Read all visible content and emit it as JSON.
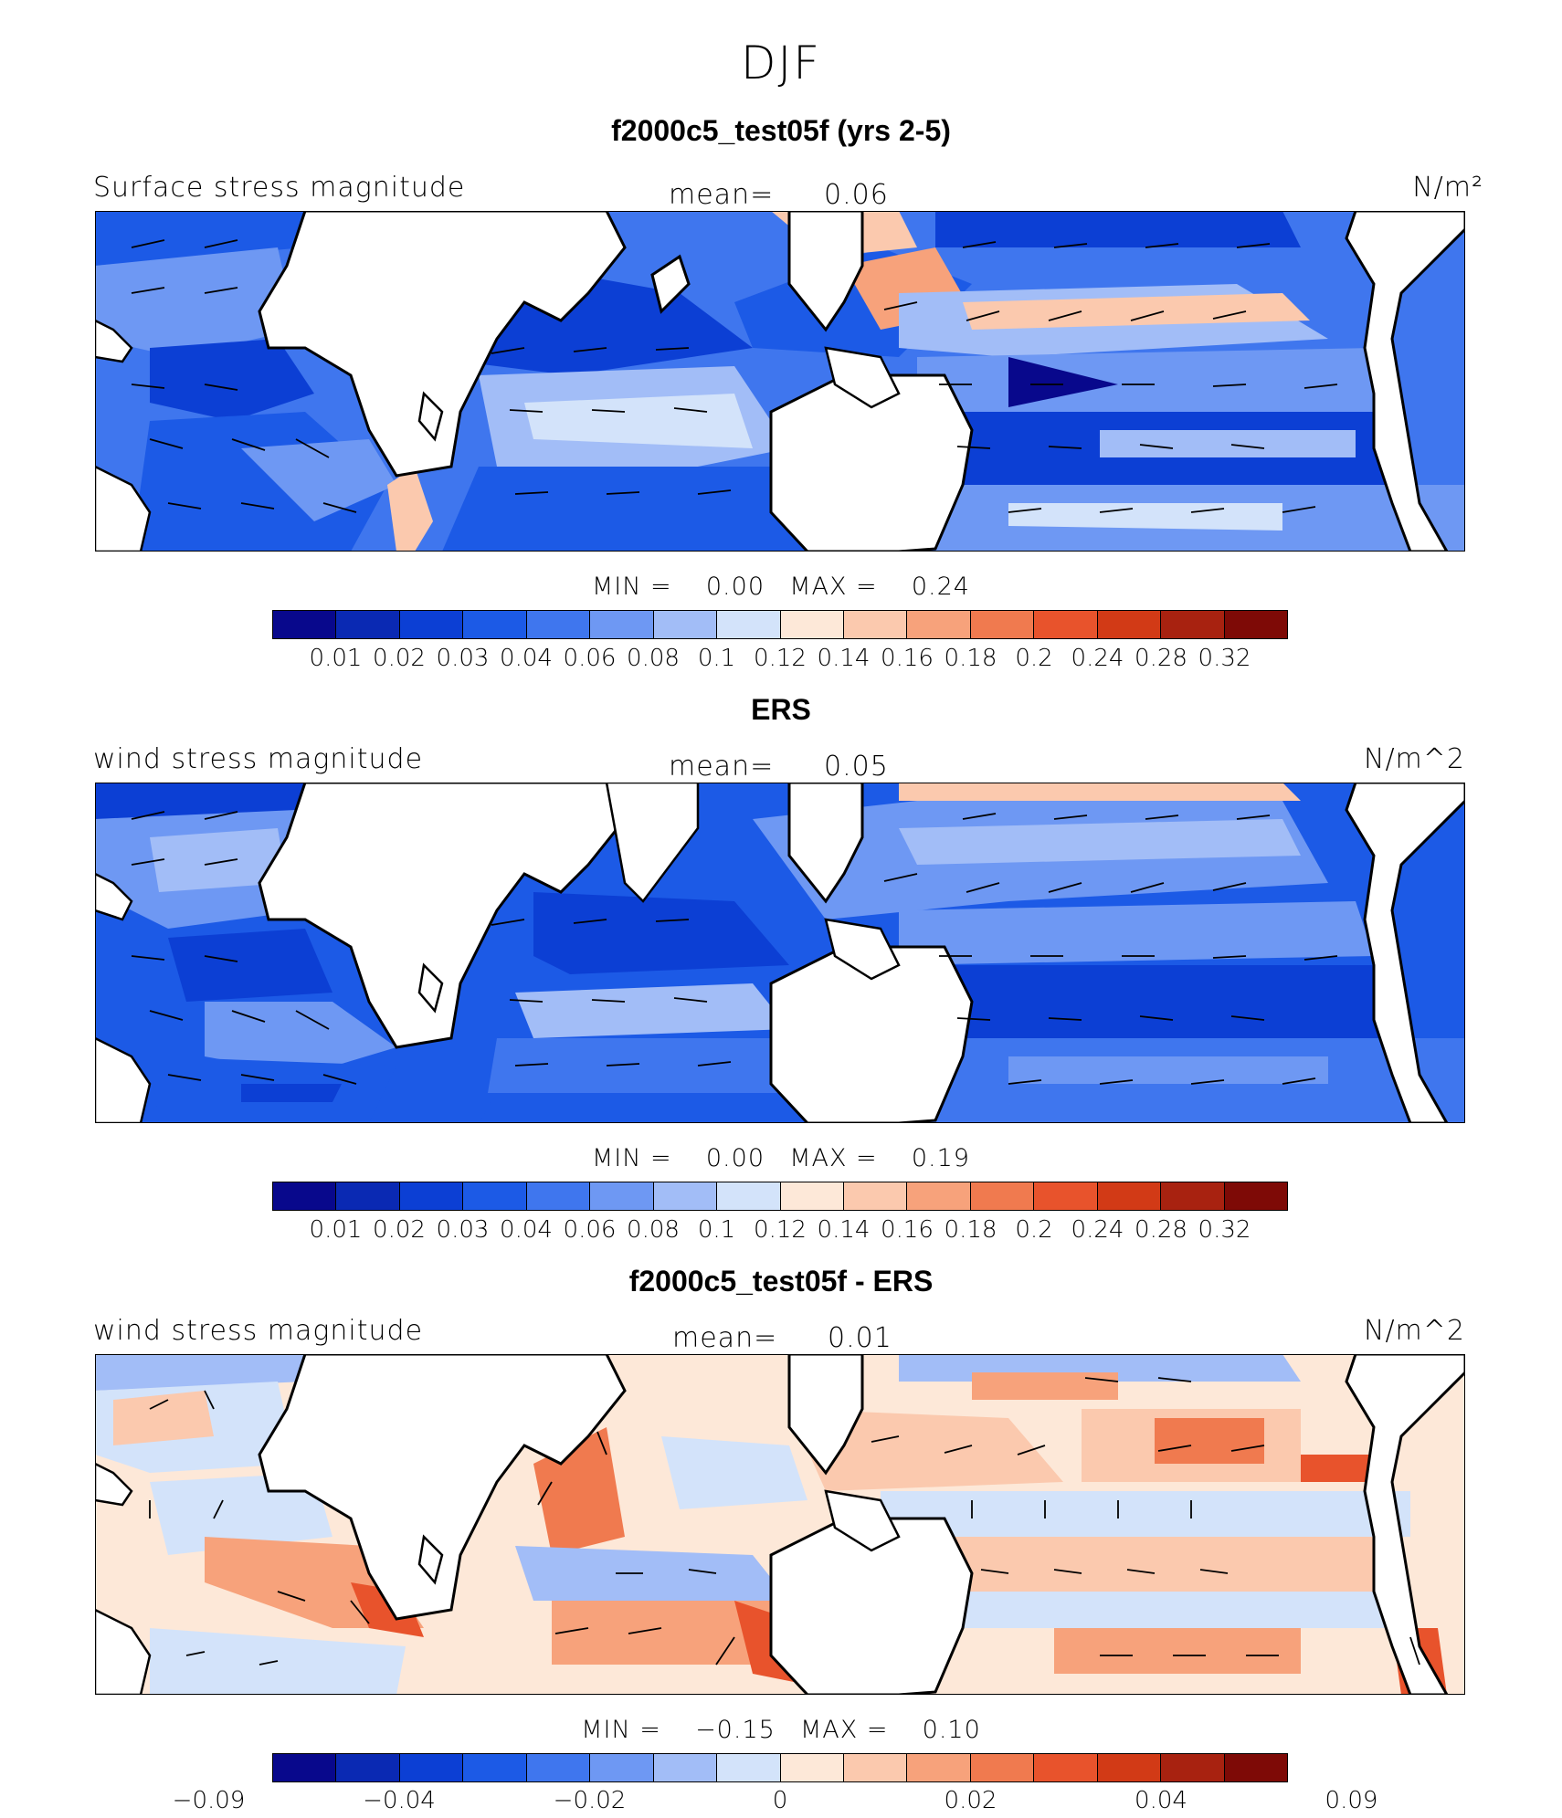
{
  "figure": {
    "title": "DJF"
  },
  "palette": [
    "#08088c",
    "#0a29b3",
    "#0c3fd4",
    "#1c5ae6",
    "#3f76ee",
    "#6e98f3",
    "#a2bdf7",
    "#d3e3fa",
    "#fde8d8",
    "#fbc9ae",
    "#f7a27b",
    "#f07a4f",
    "#e8532c",
    "#d23a16",
    "#a82210",
    "#7e0a06"
  ],
  "panels": [
    {
      "title": "f2000c5_test05f (yrs 2-5)",
      "left_label": "Surface stress magnitude",
      "mean_label": "mean=",
      "mean_value": "0.06",
      "units": "N/m²",
      "min_label": "MIN =",
      "min_value": "0.00",
      "max_label": "MAX =",
      "max_value": "0.24",
      "colorbar_ticks": [
        "0.01",
        "0.02",
        "0.03",
        "0.04",
        "0.06",
        "0.08",
        "0.1",
        "0.12",
        "0.14",
        "0.16",
        "0.18",
        "0.2",
        "0.24",
        "0.28",
        "0.32"
      ]
    },
    {
      "title": "ERS",
      "left_label": "wind stress magnitude",
      "mean_label": "mean=",
      "mean_value": "0.05",
      "units": "N/m^2",
      "min_label": "MIN =",
      "min_value": "0.00",
      "max_label": "MAX =",
      "max_value": "0.19",
      "colorbar_ticks": [
        "0.01",
        "0.02",
        "0.03",
        "0.04",
        "0.06",
        "0.08",
        "0.1",
        "0.12",
        "0.14",
        "0.16",
        "0.18",
        "0.2",
        "0.24",
        "0.28",
        "0.32"
      ]
    },
    {
      "title": "f2000c5_test05f - ERS",
      "left_label": "wind stress magnitude",
      "mean_label": "mean=",
      "mean_value": "0.01",
      "units": "N/m^2",
      "min_label": "MIN =",
      "min_value": "−0.15",
      "max_label": "MAX =",
      "max_value": "0.10",
      "colorbar_ticks": [
        "−0.09",
        "−0.04",
        "−0.02",
        "0",
        "0.02",
        "0.04",
        "0.09"
      ]
    }
  ]
}
